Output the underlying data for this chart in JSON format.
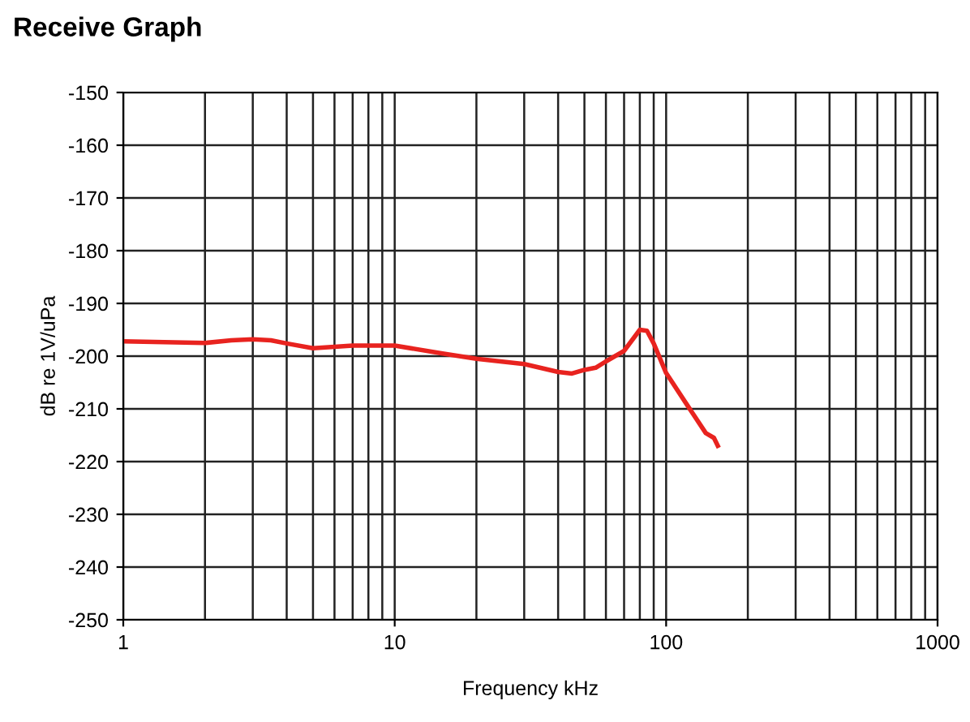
{
  "chart_data": {
    "type": "line",
    "title": "Receive Graph",
    "xlabel": "Frequency kHz",
    "ylabel": "dB re 1V/uPa",
    "log": "x",
    "grid": true,
    "xlim": [
      1,
      1000
    ],
    "ylim": [
      -250,
      -150
    ],
    "xticks": [
      1,
      10,
      100,
      1000
    ],
    "yticks": [
      -250,
      -240,
      -230,
      -220,
      -210,
      -200,
      -190,
      -180,
      -170,
      -160,
      -150
    ],
    "series": [
      {
        "color": "#e8231f",
        "x": [
          1,
          2,
          2.5,
          3,
          3.5,
          4,
          5,
          7,
          10,
          15,
          20,
          30,
          40,
          45,
          50,
          55,
          60,
          70,
          80,
          85,
          90,
          100,
          120,
          140,
          150,
          155
        ],
        "values": [
          -197.2,
          -197.5,
          -197,
          -196.8,
          -197,
          -197.6,
          -198.5,
          -198,
          -198,
          -199.5,
          -200.5,
          -201.5,
          -203,
          -203.3,
          -202.6,
          -202.2,
          -201,
          -199,
          -195,
          -195.2,
          -197.6,
          -203.2,
          -209.4,
          -214.6,
          -215.5,
          -217
        ]
      }
    ]
  }
}
